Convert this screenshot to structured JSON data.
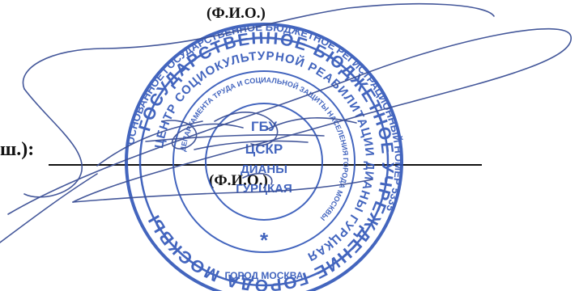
{
  "document": {
    "fio_top": "(Ф.И.О.)",
    "signature_label": "ш.):",
    "fio_bottom": "(Ф.И.О.)"
  },
  "seal": {
    "outer_ring_text": "ОСНОВАННОЕ ГОСУДАРСТВЕННОЕ БЮДЖЕТНОЕ РЕГИСТРАЦИОННЫЙ НОМЕР 5335",
    "ring_text": "ГОСУДАРСТВЕННОЕ БЮДЖЕТНОЕ УЧРЕЖДЕНИЕ ГОРОДА МОСКВЫ",
    "middle_ring_text": "ЦЕНТР СОЦИОКУЛЬТУРНОЙ РЕАБИЛИТАЦИИ ДИАНЫ ГУРЦКАЯ",
    "inner_ring_text": "ДЕПАРТАМЕНТА ТРУДА И СОЦИАЛЬНОЙ ЗАЩИТЫ НАСЕЛЕНИЯ ГОРОДА МОСКВЫ",
    "center_line_1": "ГБУ",
    "center_line_2": "ЦСКР",
    "center_line_3": "ДИАНЫ",
    "center_line_4": "ГУРЦКАЯ",
    "bottom_text": "ГОРОД МОСКВА",
    "color": "#2f55b8"
  },
  "signature_ink": {
    "color": "#3a4f95"
  }
}
